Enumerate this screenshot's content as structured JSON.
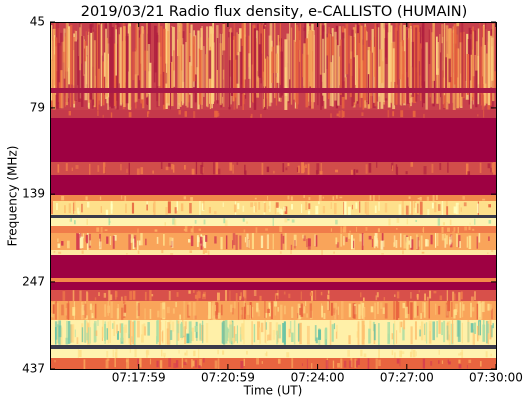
{
  "chart_data": {
    "type": "spectrogram",
    "title": "2019/03/21  Radio flux density, e-CALLISTO (HUMAIN)",
    "x_label": "Time (UT)",
    "y_label": "Frequency (MHz)",
    "xlim": [
      "07:15:00",
      "07:30:00"
    ],
    "xticks": [
      "07:17:59",
      "07:20:59",
      "07:24:00",
      "07:27:00",
      "07:30:00"
    ],
    "ylim": [
      45,
      437
    ],
    "yticks": [
      45,
      79,
      139,
      247,
      437
    ],
    "y_log": true,
    "y_inverted": true
  }
}
